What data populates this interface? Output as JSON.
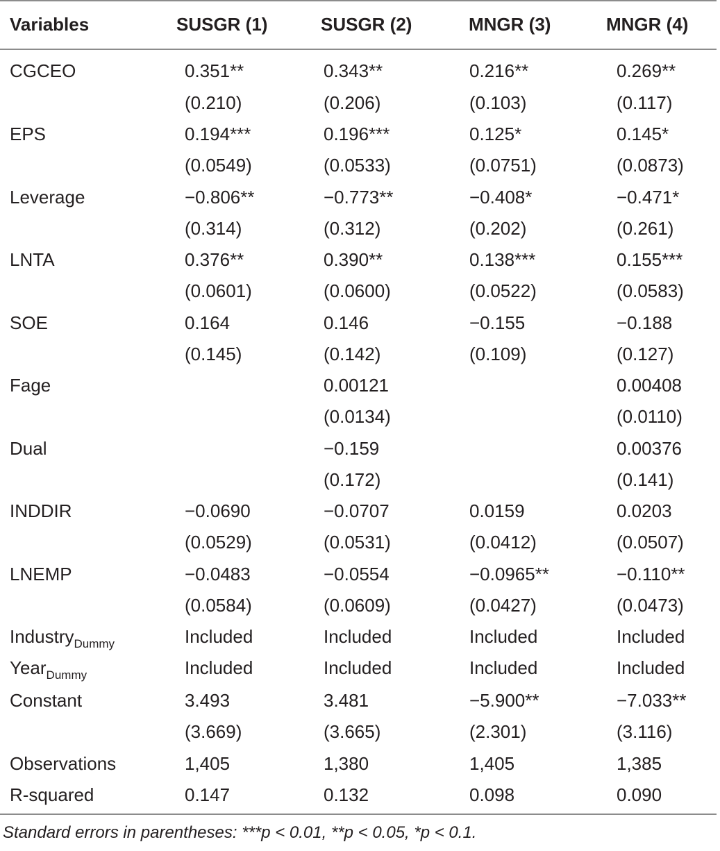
{
  "header": {
    "variables": "Variables",
    "c1": "SUSGR (1)",
    "c2": "SUSGR (2)",
    "c3": "MNGR (3)",
    "c4": "MNGR (4)"
  },
  "rows": [
    {
      "label": "CGCEO",
      "sub": "",
      "c1": "0.351**",
      "c2": "0.343**",
      "c3": "0.216**",
      "c4": "0.269**"
    },
    {
      "label": "",
      "sub": "",
      "c1": "(0.210)",
      "c2": "(0.206)",
      "c3": "(0.103)",
      "c4": "(0.117)"
    },
    {
      "label": "EPS",
      "sub": "",
      "c1": "0.194***",
      "c2": "0.196***",
      "c3": "0.125*",
      "c4": "0.145*"
    },
    {
      "label": "",
      "sub": "",
      "c1": "(0.0549)",
      "c2": "(0.0533)",
      "c3": "(0.0751)",
      "c4": "(0.0873)"
    },
    {
      "label": "Leverage",
      "sub": "",
      "c1": "−0.806**",
      "c2": "−0.773**",
      "c3": "−0.408*",
      "c4": "−0.471*"
    },
    {
      "label": "",
      "sub": "",
      "c1": "(0.314)",
      "c2": "(0.312)",
      "c3": "(0.202)",
      "c4": "(0.261)"
    },
    {
      "label": "LNTA",
      "sub": "",
      "c1": "0.376**",
      "c2": "0.390**",
      "c3": "0.138***",
      "c4": "0.155***"
    },
    {
      "label": "",
      "sub": "",
      "c1": "(0.0601)",
      "c2": "(0.0600)",
      "c3": "(0.0522)",
      "c4": "(0.0583)"
    },
    {
      "label": "SOE",
      "sub": "",
      "c1": "0.164",
      "c2": "0.146",
      "c3": "−0.155",
      "c4": "−0.188"
    },
    {
      "label": "",
      "sub": "",
      "c1": "(0.145)",
      "c2": "(0.142)",
      "c3": "(0.109)",
      "c4": "(0.127)"
    },
    {
      "label": "Fage",
      "sub": "",
      "c1": "",
      "c2": "0.00121",
      "c3": "",
      "c4": "0.00408"
    },
    {
      "label": "",
      "sub": "",
      "c1": "",
      "c2": "(0.0134)",
      "c3": "",
      "c4": "(0.0110)"
    },
    {
      "label": "Dual",
      "sub": "",
      "c1": "",
      "c2": "−0.159",
      "c3": "",
      "c4": "0.00376"
    },
    {
      "label": "",
      "sub": "",
      "c1": "",
      "c2": "(0.172)",
      "c3": "",
      "c4": "(0.141)"
    },
    {
      "label": "INDDIR",
      "sub": "",
      "c1": "−0.0690",
      "c2": "−0.0707",
      "c3": "0.0159",
      "c4": "0.0203"
    },
    {
      "label": "",
      "sub": "",
      "c1": "(0.0529)",
      "c2": "(0.0531)",
      "c3": "(0.0412)",
      "c4": "(0.0507)"
    },
    {
      "label": "LNEMP",
      "sub": "",
      "c1": "−0.0483",
      "c2": "−0.0554",
      "c3": "−0.0965**",
      "c4": "−0.110**"
    },
    {
      "label": "",
      "sub": "",
      "c1": "(0.0584)",
      "c2": "(0.0609)",
      "c3": "(0.0427)",
      "c4": "(0.0473)"
    },
    {
      "label": "Industry",
      "sub": "Dummy",
      "c1": "Included",
      "c2": "Included",
      "c3": "Included",
      "c4": "Included"
    },
    {
      "label": "Year",
      "sub": "Dummy",
      "c1": "Included",
      "c2": "Included",
      "c3": "Included",
      "c4": "Included"
    },
    {
      "label": "Constant",
      "sub": "",
      "c1": "3.493",
      "c2": "3.481",
      "c3": "−5.900**",
      "c4": "−7.033**"
    },
    {
      "label": "",
      "sub": "",
      "c1": "(3.669)",
      "c2": "(3.665)",
      "c3": "(2.301)",
      "c4": "(3.116)"
    },
    {
      "label": "Observations",
      "sub": "",
      "c1": "1,405",
      "c2": "1,380",
      "c3": "1,405",
      "c4": "1,385"
    },
    {
      "label": "R-squared",
      "sub": "",
      "c1": "0.147",
      "c2": "0.132",
      "c3": "0.098",
      "c4": "0.090"
    }
  ],
  "footnote": "Standard errors in parentheses: ***p < 0.01, **p < 0.05, *p < 0.1."
}
